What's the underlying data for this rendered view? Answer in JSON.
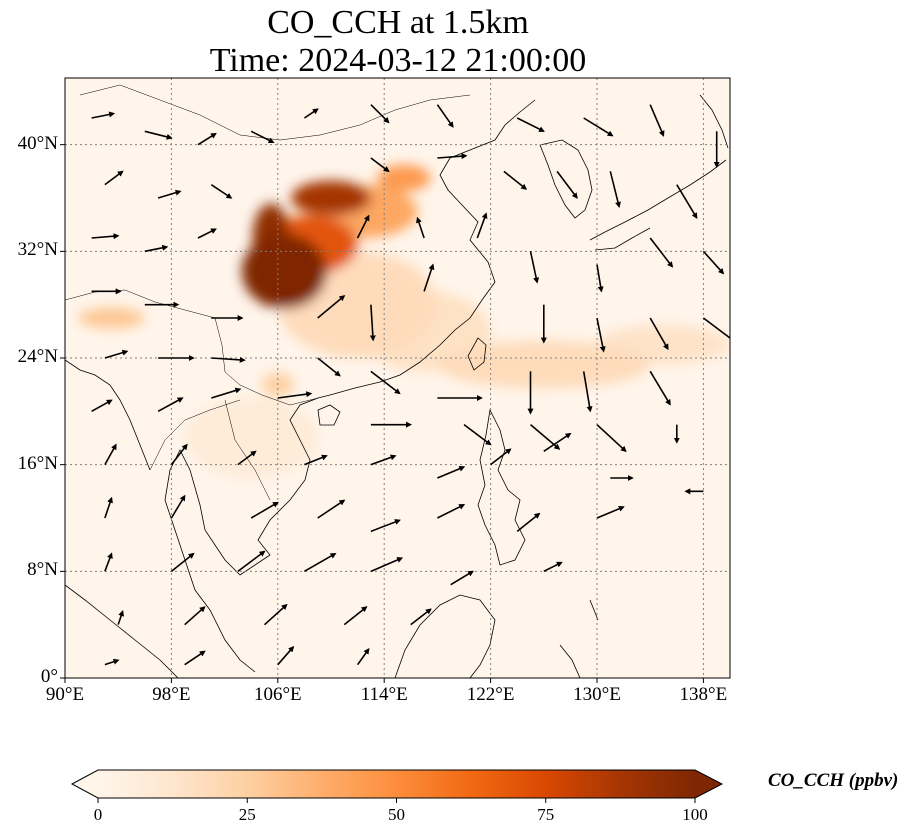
{
  "title": {
    "line1": "CO_CCH at 1.5km",
    "line2": "Time: 2024-03-12 21:00:00"
  },
  "map": {
    "lon_range": [
      90,
      140
    ],
    "lat_range": [
      0,
      45
    ],
    "lon_ticks": [
      {
        "value": 90,
        "label": "90°E"
      },
      {
        "value": 98,
        "label": "98°E"
      },
      {
        "value": 106,
        "label": "106°E"
      },
      {
        "value": 114,
        "label": "114°E"
      },
      {
        "value": 122,
        "label": "122°E"
      },
      {
        "value": 130,
        "label": "130°E"
      },
      {
        "value": 138,
        "label": "138°E"
      }
    ],
    "lat_ticks": [
      {
        "value": 0,
        "label": "0°"
      },
      {
        "value": 8,
        "label": "8°N"
      },
      {
        "value": 16,
        "label": "16°N"
      },
      {
        "value": 24,
        "label": "24°N"
      },
      {
        "value": 32,
        "label": "32°N"
      },
      {
        "value": 40,
        "label": "40°N"
      }
    ],
    "gridlines": true,
    "colors": {
      "background": "#fff5eb",
      "coastline": "#000000",
      "grid": "#808080",
      "vector": "#000000"
    }
  },
  "colorbar": {
    "title": "CO_CCH (ppbv)",
    "range": [
      0,
      100
    ],
    "ticks": [
      {
        "value": 0,
        "label": "0"
      },
      {
        "value": 25,
        "label": "25"
      },
      {
        "value": 50,
        "label": "50"
      },
      {
        "value": 75,
        "label": "75"
      },
      {
        "value": 100,
        "label": "100"
      }
    ],
    "extend": "both",
    "colormap": "OrRd",
    "stops": [
      "#fff5eb",
      "#fee6ce",
      "#fdd0a2",
      "#fdae6b",
      "#fd8d3c",
      "#f16913",
      "#d94801",
      "#a63603",
      "#7f2704"
    ]
  },
  "concentration_regions": [
    {
      "lon": 106.5,
      "lat": 30.5,
      "rx": 3.2,
      "ry": 2.8,
      "value": 100
    },
    {
      "lon": 105.5,
      "lat": 33.0,
      "rx": 1.4,
      "ry": 2.6,
      "value": 95
    },
    {
      "lon": 110.0,
      "lat": 36.0,
      "rx": 3.0,
      "ry": 1.3,
      "value": 88
    },
    {
      "lon": 108.5,
      "lat": 32.5,
      "rx": 3.5,
      "ry": 2.2,
      "value": 70
    },
    {
      "lon": 112.5,
      "lat": 35.0,
      "rx": 4.0,
      "ry": 2.0,
      "value": 40
    },
    {
      "lon": 115.5,
      "lat": 37.5,
      "rx": 2.0,
      "ry": 1.0,
      "value": 45
    },
    {
      "lon": 112.0,
      "lat": 28.0,
      "rx": 6.0,
      "ry": 4.0,
      "value": 18
    },
    {
      "lon": 117.0,
      "lat": 26.0,
      "rx": 5.0,
      "ry": 3.0,
      "value": 15
    },
    {
      "lon": 93.5,
      "lat": 27.0,
      "rx": 2.5,
      "ry": 0.8,
      "value": 28
    },
    {
      "lon": 106.0,
      "lat": 22.0,
      "rx": 1.2,
      "ry": 0.9,
      "value": 25
    },
    {
      "lon": 126.0,
      "lat": 23.5,
      "rx": 8.0,
      "ry": 1.8,
      "value": 18
    },
    {
      "lon": 135.0,
      "lat": 25.0,
      "rx": 5.0,
      "ry": 1.5,
      "value": 14
    },
    {
      "lon": 104.0,
      "lat": 18.0,
      "rx": 5.0,
      "ry": 3.0,
      "value": 8
    }
  ],
  "wind_vectors": [
    {
      "lon": 92,
      "lat": 42,
      "u": 1.0,
      "v": 0.2
    },
    {
      "lon": 96,
      "lat": 41,
      "u": 1.2,
      "v": -0.3
    },
    {
      "lon": 100,
      "lat": 40,
      "u": 0.8,
      "v": 0.5
    },
    {
      "lon": 104,
      "lat": 41,
      "u": 1.0,
      "v": -0.5
    },
    {
      "lon": 108,
      "lat": 42,
      "u": 0.6,
      "v": 0.4
    },
    {
      "lon": 113,
      "lat": 43,
      "u": 0.8,
      "v": -0.8
    },
    {
      "lon": 118,
      "lat": 43,
      "u": 0.7,
      "v": -1.0
    },
    {
      "lon": 124,
      "lat": 42,
      "u": 1.2,
      "v": -0.6
    },
    {
      "lon": 129,
      "lat": 42,
      "u": 1.3,
      "v": -0.8
    },
    {
      "lon": 134,
      "lat": 43,
      "u": 0.6,
      "v": -1.4
    },
    {
      "lon": 139,
      "lat": 41,
      "u": 0.0,
      "v": -1.6
    },
    {
      "lon": 93,
      "lat": 37,
      "u": 0.8,
      "v": 0.6
    },
    {
      "lon": 97,
      "lat": 36,
      "u": 1.0,
      "v": 0.3
    },
    {
      "lon": 101,
      "lat": 37,
      "u": 0.9,
      "v": -0.6
    },
    {
      "lon": 113,
      "lat": 39,
      "u": 0.8,
      "v": -0.6
    },
    {
      "lon": 118,
      "lat": 39,
      "u": 1.3,
      "v": 0.1
    },
    {
      "lon": 123,
      "lat": 38,
      "u": 1.0,
      "v": -0.8
    },
    {
      "lon": 127,
      "lat": 38,
      "u": 0.9,
      "v": -1.2
    },
    {
      "lon": 131,
      "lat": 38,
      "u": 0.4,
      "v": -1.6
    },
    {
      "lon": 136,
      "lat": 37,
      "u": 0.9,
      "v": -1.5
    },
    {
      "lon": 92,
      "lat": 33,
      "u": 1.2,
      "v": 0.1
    },
    {
      "lon": 96,
      "lat": 32,
      "u": 1.0,
      "v": 0.2
    },
    {
      "lon": 100,
      "lat": 33,
      "u": 0.8,
      "v": 0.4
    },
    {
      "lon": 112,
      "lat": 33,
      "u": 0.5,
      "v": 1.0
    },
    {
      "lon": 117,
      "lat": 33,
      "u": -0.3,
      "v": 0.9
    },
    {
      "lon": 121,
      "lat": 33,
      "u": 0.4,
      "v": 1.1
    },
    {
      "lon": 125,
      "lat": 32,
      "u": 0.3,
      "v": -1.4
    },
    {
      "lon": 130,
      "lat": 31,
      "u": 0.2,
      "v": -1.2
    },
    {
      "lon": 134,
      "lat": 33,
      "u": 1.0,
      "v": -1.3
    },
    {
      "lon": 138,
      "lat": 32,
      "u": 0.9,
      "v": -1.0
    },
    {
      "lon": 92,
      "lat": 29,
      "u": 1.3,
      "v": 0.0
    },
    {
      "lon": 96,
      "lat": 28,
      "u": 1.5,
      "v": 0.0
    },
    {
      "lon": 101,
      "lat": 27,
      "u": 1.4,
      "v": 0.0
    },
    {
      "lon": 109,
      "lat": 27,
      "u": 1.2,
      "v": 1.0
    },
    {
      "lon": 113,
      "lat": 28,
      "u": 0.1,
      "v": -1.6
    },
    {
      "lon": 117,
      "lat": 29,
      "u": 0.4,
      "v": 1.2
    },
    {
      "lon": 126,
      "lat": 28,
      "u": 0.0,
      "v": -1.7
    },
    {
      "lon": 130,
      "lat": 27,
      "u": 0.3,
      "v": -1.5
    },
    {
      "lon": 134,
      "lat": 27,
      "u": 0.8,
      "v": -1.4
    },
    {
      "lon": 138,
      "lat": 27,
      "u": 1.6,
      "v": -1.2
    },
    {
      "lon": 93,
      "lat": 24,
      "u": 1.0,
      "v": 0.3
    },
    {
      "lon": 97,
      "lat": 24,
      "u": 1.6,
      "v": 0.0
    },
    {
      "lon": 101,
      "lat": 24,
      "u": 1.5,
      "v": -0.1
    },
    {
      "lon": 109,
      "lat": 24,
      "u": 1.0,
      "v": -0.8
    },
    {
      "lon": 113,
      "lat": 23,
      "u": 1.3,
      "v": -1.0
    },
    {
      "lon": 118,
      "lat": 21,
      "u": 2.0,
      "v": 0.0
    },
    {
      "lon": 125,
      "lat": 23,
      "u": 0.0,
      "v": -1.9
    },
    {
      "lon": 129,
      "lat": 23,
      "u": 0.3,
      "v": -1.8
    },
    {
      "lon": 134,
      "lat": 23,
      "u": 0.9,
      "v": -1.5
    },
    {
      "lon": 92,
      "lat": 20,
      "u": 0.9,
      "v": 0.5
    },
    {
      "lon": 97,
      "lat": 20,
      "u": 1.1,
      "v": 0.6
    },
    {
      "lon": 101,
      "lat": 21,
      "u": 1.3,
      "v": 0.4
    },
    {
      "lon": 106,
      "lat": 21,
      "u": 1.5,
      "v": 0.2
    },
    {
      "lon": 113,
      "lat": 19,
      "u": 1.8,
      "v": 0.0
    },
    {
      "lon": 120,
      "lat": 19,
      "u": 1.2,
      "v": -0.9
    },
    {
      "lon": 125,
      "lat": 19,
      "u": 1.3,
      "v": -1.1
    },
    {
      "lon": 130,
      "lat": 19,
      "u": 1.3,
      "v": -1.2
    },
    {
      "lon": 136,
      "lat": 19,
      "u": 0.0,
      "v": -0.8
    },
    {
      "lon": 93,
      "lat": 16,
      "u": 0.5,
      "v": 0.9
    },
    {
      "lon": 98,
      "lat": 16,
      "u": 0.7,
      "v": 0.9
    },
    {
      "lon": 103,
      "lat": 16,
      "u": 0.8,
      "v": 0.6
    },
    {
      "lon": 108,
      "lat": 16,
      "u": 1.0,
      "v": 0.4
    },
    {
      "lon": 113,
      "lat": 16,
      "u": 1.1,
      "v": 0.4
    },
    {
      "lon": 118,
      "lat": 15,
      "u": 1.2,
      "v": 0.5
    },
    {
      "lon": 122,
      "lat": 16,
      "u": 0.9,
      "v": 0.7
    },
    {
      "lon": 126,
      "lat": 17,
      "u": 1.2,
      "v": 0.8
    },
    {
      "lon": 131,
      "lat": 15,
      "u": 1.0,
      "v": 0.0
    },
    {
      "lon": 138,
      "lat": 14,
      "u": -0.8,
      "v": 0.0
    },
    {
      "lon": 93,
      "lat": 12,
      "u": 0.3,
      "v": 0.9
    },
    {
      "lon": 98,
      "lat": 12,
      "u": 0.6,
      "v": 1.0
    },
    {
      "lon": 104,
      "lat": 12,
      "u": 1.2,
      "v": 0.7
    },
    {
      "lon": 109,
      "lat": 12,
      "u": 1.2,
      "v": 0.8
    },
    {
      "lon": 113,
      "lat": 11,
      "u": 1.3,
      "v": 0.5
    },
    {
      "lon": 118,
      "lat": 12,
      "u": 1.2,
      "v": 0.6
    },
    {
      "lon": 124,
      "lat": 11,
      "u": 1.0,
      "v": 0.8
    },
    {
      "lon": 130,
      "lat": 12,
      "u": 1.2,
      "v": 0.5
    },
    {
      "lon": 93,
      "lat": 8,
      "u": 0.3,
      "v": 0.8
    },
    {
      "lon": 98,
      "lat": 8,
      "u": 1.0,
      "v": 0.8
    },
    {
      "lon": 103,
      "lat": 8,
      "u": 1.2,
      "v": 0.9
    },
    {
      "lon": 108,
      "lat": 8,
      "u": 1.4,
      "v": 0.8
    },
    {
      "lon": 113,
      "lat": 8,
      "u": 1.4,
      "v": 0.6
    },
    {
      "lon": 119,
      "lat": 7,
      "u": 1.0,
      "v": 0.6
    },
    {
      "lon": 126,
      "lat": 8,
      "u": 0.8,
      "v": 0.4
    },
    {
      "lon": 94,
      "lat": 4,
      "u": 0.2,
      "v": 0.6
    },
    {
      "lon": 99,
      "lat": 4,
      "u": 0.9,
      "v": 0.8
    },
    {
      "lon": 105,
      "lat": 4,
      "u": 1.0,
      "v": 0.9
    },
    {
      "lon": 111,
      "lat": 4,
      "u": 1.0,
      "v": 0.8
    },
    {
      "lon": 116,
      "lat": 4,
      "u": 0.9,
      "v": 0.7
    },
    {
      "lon": 93,
      "lat": 1,
      "u": 0.6,
      "v": 0.2
    },
    {
      "lon": 99,
      "lat": 1,
      "u": 0.9,
      "v": 0.6
    },
    {
      "lon": 106,
      "lat": 1,
      "u": 0.7,
      "v": 0.8
    },
    {
      "lon": 112,
      "lat": 1,
      "u": 0.5,
      "v": 0.7
    }
  ]
}
